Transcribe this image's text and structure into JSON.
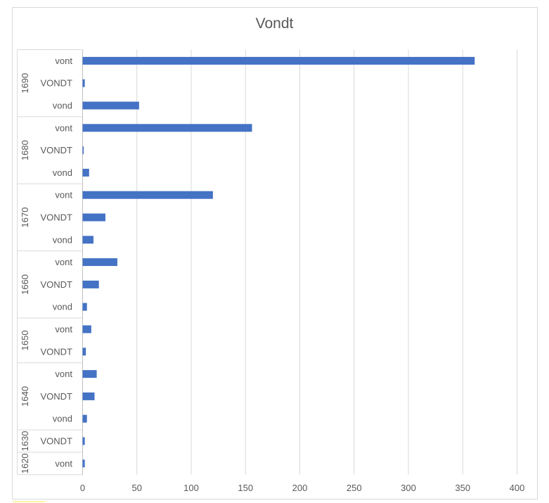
{
  "chart_data": {
    "type": "bar",
    "orientation": "horizontal",
    "title": "Vondt",
    "xlabel": "",
    "ylabel": "",
    "xlim": [
      0,
      400
    ],
    "x_ticks": [
      0,
      50,
      100,
      150,
      200,
      250,
      300,
      350,
      400
    ],
    "grid": true,
    "bar_color": "#4472C4",
    "groups": [
      {
        "name": "1690",
        "items": [
          {
            "label": "vont",
            "value": 361
          },
          {
            "label": "VONDT",
            "value": 2
          },
          {
            "label": "vond",
            "value": 52
          }
        ]
      },
      {
        "name": "1680",
        "items": [
          {
            "label": "vont",
            "value": 156
          },
          {
            "label": "VONDT",
            "value": 1
          },
          {
            "label": "vond",
            "value": 6
          }
        ]
      },
      {
        "name": "1670",
        "items": [
          {
            "label": "vont",
            "value": 120
          },
          {
            "label": "VONDT",
            "value": 21
          },
          {
            "label": "vond",
            "value": 10
          }
        ]
      },
      {
        "name": "1660",
        "items": [
          {
            "label": "vont",
            "value": 32
          },
          {
            "label": "VONDT",
            "value": 15
          },
          {
            "label": "vond",
            "value": 4
          }
        ]
      },
      {
        "name": "1650",
        "items": [
          {
            "label": "vont",
            "value": 8
          },
          {
            "label": "VONDT",
            "value": 3
          }
        ]
      },
      {
        "name": "1640",
        "items": [
          {
            "label": "vont",
            "value": 13
          },
          {
            "label": "VONDT",
            "value": 11
          },
          {
            "label": "vond",
            "value": 4
          }
        ]
      },
      {
        "name": "1630",
        "items": [
          {
            "label": "VONDT",
            "value": 2
          }
        ]
      },
      {
        "name": "1620",
        "items": [
          {
            "label": "vont",
            "value": 2
          }
        ]
      }
    ]
  }
}
